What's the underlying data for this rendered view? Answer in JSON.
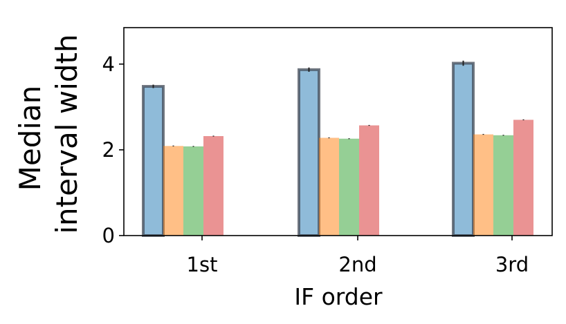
{
  "chart_data": {
    "type": "bar",
    "xlabel": "IF order",
    "ylabel_lines": [
      "Median",
      "interval width"
    ],
    "categories": [
      "1st",
      "2nd",
      "3rd"
    ],
    "ylim": [
      0,
      4.85
    ],
    "yticks": [
      0,
      2,
      4
    ],
    "grid": false,
    "legend": "none",
    "series": [
      {
        "values": [
          3.48,
          3.87,
          4.02
        ],
        "errors": [
          0.04,
          0.05,
          0.06
        ],
        "color": "#1f77b4",
        "outlined": true
      },
      {
        "values": [
          2.09,
          2.28,
          2.36
        ],
        "errors": [
          0.01,
          0.01,
          0.01
        ],
        "color": "#ff7f0e",
        "outlined": false
      },
      {
        "values": [
          2.08,
          2.26,
          2.34
        ],
        "errors": [
          0.01,
          0.01,
          0.01
        ],
        "color": "#2ca02c",
        "outlined": false
      },
      {
        "values": [
          2.32,
          2.57,
          2.7
        ],
        "errors": [
          0.01,
          0.01,
          0.01
        ],
        "color": "#d62728",
        "outlined": false
      }
    ]
  }
}
